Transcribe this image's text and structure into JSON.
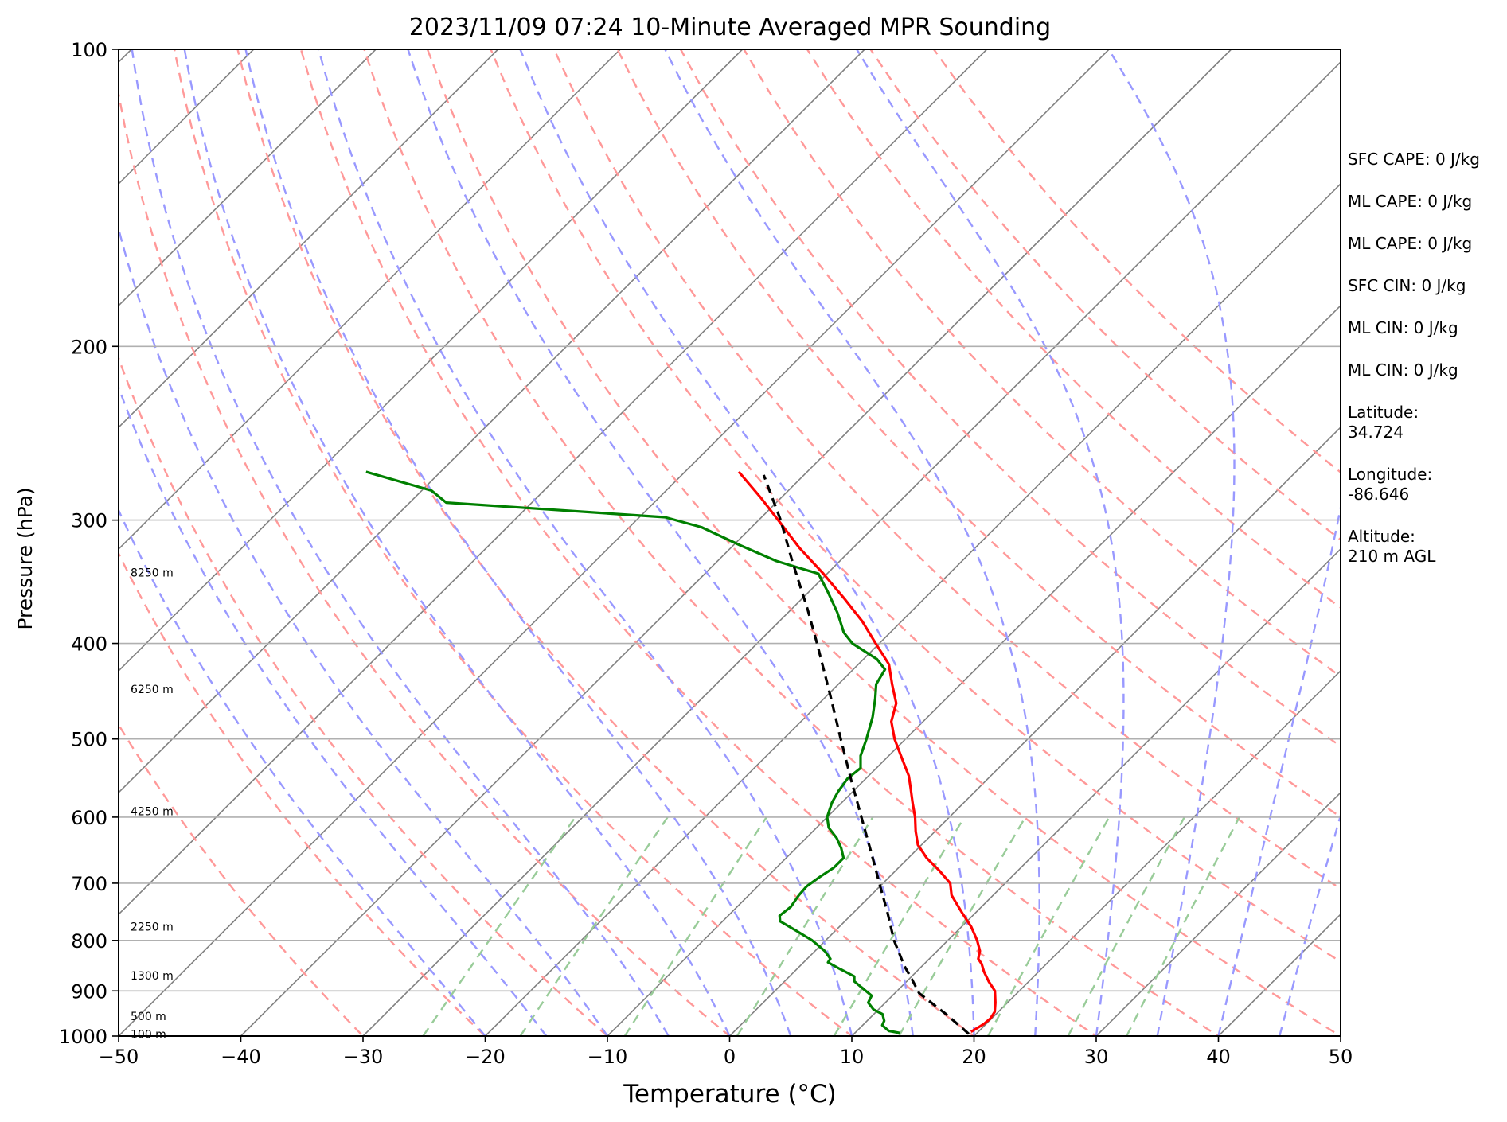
{
  "chart_data": {
    "type": "line",
    "title": "2023/11/09 07:24 10-Minute Averaged MPR Sounding",
    "xlabel": "Temperature (°C)",
    "ylabel": "Pressure (hPa)",
    "xlim": [
      -50,
      50
    ],
    "ylim": [
      1000,
      100
    ],
    "y_scale": "log",
    "skew_plot": true,
    "grid": true,
    "x_ticks": [
      -50,
      -40,
      -30,
      -20,
      -10,
      0,
      10,
      20,
      30,
      40,
      50
    ],
    "x_tick_labels": [
      "−50",
      "−40",
      "−30",
      "−20",
      "−10",
      "0",
      "10",
      "20",
      "30",
      "40",
      "50"
    ],
    "y_ticks": [
      1000,
      900,
      800,
      700,
      600,
      500,
      400,
      300,
      200,
      100
    ],
    "y_tick_labels": [
      "1000",
      "900",
      "800",
      "700",
      "600",
      "500",
      "400",
      "300",
      "200",
      "100"
    ],
    "height_labels": [
      {
        "p": 995,
        "text": "100 m"
      },
      {
        "p": 955,
        "text": "500 m"
      },
      {
        "p": 868,
        "text": "1300 m"
      },
      {
        "p": 775,
        "text": "2250 m"
      },
      {
        "p": 592,
        "text": "4250 m"
      },
      {
        "p": 445,
        "text": "6250 m"
      },
      {
        "p": 339,
        "text": "8250 m"
      }
    ],
    "series": [
      {
        "id": "temperature",
        "color": "#ff0000",
        "points": [
          {
            "p": 990,
            "t": 19.4
          },
          {
            "p": 973,
            "t": 19.8
          },
          {
            "p": 960,
            "t": 19.9
          },
          {
            "p": 945,
            "t": 19.7
          },
          {
            "p": 925,
            "t": 19.0
          },
          {
            "p": 900,
            "t": 18.0
          },
          {
            "p": 880,
            "t": 16.7
          },
          {
            "p": 860,
            "t": 15.5
          },
          {
            "p": 845,
            "t": 14.7
          },
          {
            "p": 835,
            "t": 14.0
          },
          {
            "p": 820,
            "t": 13.5
          },
          {
            "p": 800,
            "t": 12.4
          },
          {
            "p": 775,
            "t": 10.8
          },
          {
            "p": 750,
            "t": 8.9
          },
          {
            "p": 720,
            "t": 6.6
          },
          {
            "p": 700,
            "t": 5.5
          },
          {
            "p": 680,
            "t": 3.6
          },
          {
            "p": 660,
            "t": 1.5
          },
          {
            "p": 640,
            "t": -0.3
          },
          {
            "p": 620,
            "t": -1.6
          },
          {
            "p": 600,
            "t": -2.8
          },
          {
            "p": 580,
            "t": -4.2
          },
          {
            "p": 560,
            "t": -5.6
          },
          {
            "p": 545,
            "t": -6.7
          },
          {
            "p": 520,
            "t": -9.0
          },
          {
            "p": 500,
            "t": -10.9
          },
          {
            "p": 480,
            "t": -12.6
          },
          {
            "p": 460,
            "t": -13.7
          },
          {
            "p": 440,
            "t": -15.6
          },
          {
            "p": 420,
            "t": -17.5
          },
          {
            "p": 400,
            "t": -20.3
          },
          {
            "p": 380,
            "t": -23.2
          },
          {
            "p": 360,
            "t": -26.6
          },
          {
            "p": 340,
            "t": -30.3
          },
          {
            "p": 320,
            "t": -34.4
          },
          {
            "p": 300,
            "t": -38.4
          },
          {
            "p": 285,
            "t": -41.6
          },
          {
            "p": 268,
            "t": -45.6
          }
        ]
      },
      {
        "id": "dewpoint",
        "color": "#008000",
        "points": [
          {
            "p": 993,
            "t": 13.7
          },
          {
            "p": 988,
            "t": 12.6
          },
          {
            "p": 975,
            "t": 11.6
          },
          {
            "p": 965,
            "t": 11.4
          },
          {
            "p": 950,
            "t": 10.7
          },
          {
            "p": 940,
            "t": 9.6
          },
          {
            "p": 925,
            "t": 8.6
          },
          {
            "p": 910,
            "t": 8.3
          },
          {
            "p": 895,
            "t": 7.0
          },
          {
            "p": 880,
            "t": 5.7
          },
          {
            "p": 870,
            "t": 5.3
          },
          {
            "p": 855,
            "t": 3.5
          },
          {
            "p": 842,
            "t": 2.0
          },
          {
            "p": 835,
            "t": 1.9
          },
          {
            "p": 820,
            "t": 0.8
          },
          {
            "p": 800,
            "t": -1.1
          },
          {
            "p": 782,
            "t": -3.2
          },
          {
            "p": 765,
            "t": -5.3
          },
          {
            "p": 755,
            "t": -5.8
          },
          {
            "p": 740,
            "t": -5.6
          },
          {
            "p": 720,
            "t": -5.9
          },
          {
            "p": 705,
            "t": -6.0
          },
          {
            "p": 690,
            "t": -5.7
          },
          {
            "p": 675,
            "t": -5.3
          },
          {
            "p": 660,
            "t": -5.3
          },
          {
            "p": 645,
            "t": -6.3
          },
          {
            "p": 630,
            "t": -7.5
          },
          {
            "p": 615,
            "t": -9.0
          },
          {
            "p": 600,
            "t": -10.0
          },
          {
            "p": 580,
            "t": -10.8
          },
          {
            "p": 565,
            "t": -11.2
          },
          {
            "p": 548,
            "t": -11.5
          },
          {
            "p": 535,
            "t": -11.3
          },
          {
            "p": 520,
            "t": -12.3
          },
          {
            "p": 500,
            "t": -13.2
          },
          {
            "p": 475,
            "t": -14.5
          },
          {
            "p": 455,
            "t": -15.8
          },
          {
            "p": 440,
            "t": -16.9
          },
          {
            "p": 425,
            "t": -17.4
          },
          {
            "p": 415,
            "t": -18.9
          },
          {
            "p": 400,
            "t": -22.2
          },
          {
            "p": 390,
            "t": -23.8
          },
          {
            "p": 380,
            "t": -25.0
          },
          {
            "p": 372,
            "t": -26.0
          },
          {
            "p": 355,
            "t": -28.4
          },
          {
            "p": 340,
            "t": -30.7
          },
          {
            "p": 330,
            "t": -35.2
          },
          {
            "p": 318,
            "t": -39.5
          },
          {
            "p": 305,
            "t": -44.1
          },
          {
            "p": 298,
            "t": -47.9
          },
          {
            "p": 288,
            "t": -67.0
          },
          {
            "p": 280,
            "t": -69.2
          },
          {
            "p": 268,
            "t": -76.1
          }
        ]
      },
      {
        "id": "parcel",
        "color": "#000000",
        "dashed": true,
        "points": [
          {
            "p": 995,
            "t": 19.4
          },
          {
            "p": 950,
            "t": 15.9
          },
          {
            "p": 905,
            "t": 12.0
          },
          {
            "p": 875,
            "t": 10.2
          },
          {
            "p": 850,
            "t": 8.6
          },
          {
            "p": 800,
            "t": 5.6
          },
          {
            "p": 750,
            "t": 2.8
          },
          {
            "p": 700,
            "t": -0.3
          },
          {
            "p": 650,
            "t": -3.6
          },
          {
            "p": 600,
            "t": -7.2
          },
          {
            "p": 550,
            "t": -11.1
          },
          {
            "p": 500,
            "t": -15.3
          },
          {
            "p": 450,
            "t": -19.9
          },
          {
            "p": 400,
            "t": -25.1
          },
          {
            "p": 370,
            "t": -28.6
          },
          {
            "p": 330,
            "t": -33.9
          },
          {
            "p": 300,
            "t": -38.2
          },
          {
            "p": 270,
            "t": -43.3
          }
        ]
      }
    ],
    "reference_lines": {
      "isotherms": [
        -150,
        -140,
        -130,
        -120,
        -110,
        -100,
        -90,
        -80,
        -70,
        -60,
        -50,
        -40,
        -30,
        -20,
        -10,
        0,
        10,
        20,
        30,
        40,
        50
      ],
      "dry_adiabats_theta_c": [
        -30,
        -20,
        -10,
        0,
        10,
        20,
        30,
        40,
        50,
        60,
        70,
        80,
        90,
        100,
        110,
        120,
        130
      ],
      "moist_adiabats_t_c": [
        -20,
        -15,
        -10,
        -5,
        0,
        5,
        10,
        15,
        20,
        25,
        30,
        35,
        40,
        45,
        50
      ],
      "mixing_ratios_gkg": [
        0.5,
        1,
        2,
        4,
        7,
        10,
        16,
        24,
        32
      ],
      "isotherm_color": "#808080",
      "dry_adiabat_color": "#ff9999",
      "moist_adiabat_color": "#9999ff",
      "mixing_ratio_color": "#99cc99"
    }
  },
  "info_panel": [
    {
      "label": "SFC CAPE: 0 J/kg"
    },
    {
      "label": "ML CAPE: 0 J/kg"
    },
    {
      "label": "ML CAPE: 0 J/kg"
    },
    {
      "label": "SFC CIN: 0 J/kg"
    },
    {
      "label": "ML CIN: 0 J/kg"
    },
    {
      "label": "ML CIN: 0 J/kg"
    },
    {
      "label": "Latitude:\n34.724"
    },
    {
      "label": "Longitude:\n-86.646"
    },
    {
      "label": "Altitude:\n210 m AGL"
    }
  ]
}
